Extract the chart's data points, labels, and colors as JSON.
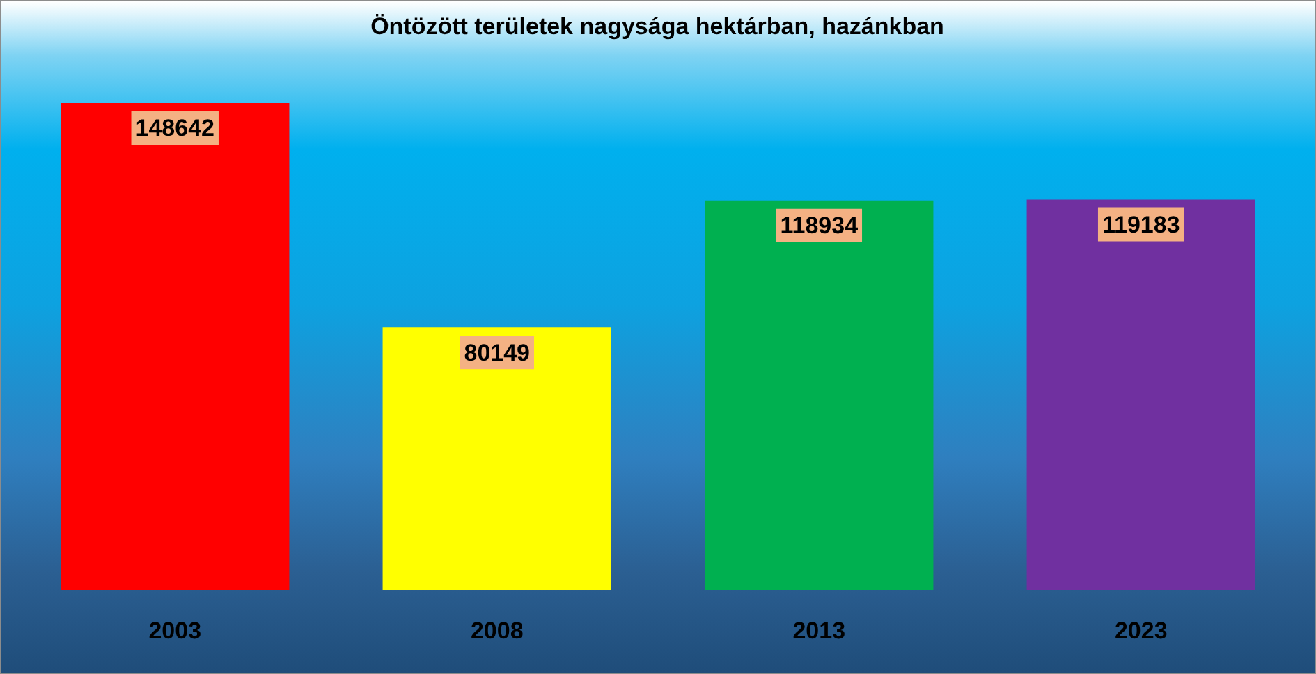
{
  "chart_data": {
    "type": "bar",
    "title": "Öntözött területek nagysága hektárban, hazánkban",
    "categories": [
      "2003",
      "2008",
      "2013",
      "2023"
    ],
    "values": [
      148642,
      80149,
      118934,
      119183
    ],
    "colors": [
      "#ff0000",
      "#ffff00",
      "#00b050",
      "#7030a0"
    ],
    "data_labels": true
  }
}
